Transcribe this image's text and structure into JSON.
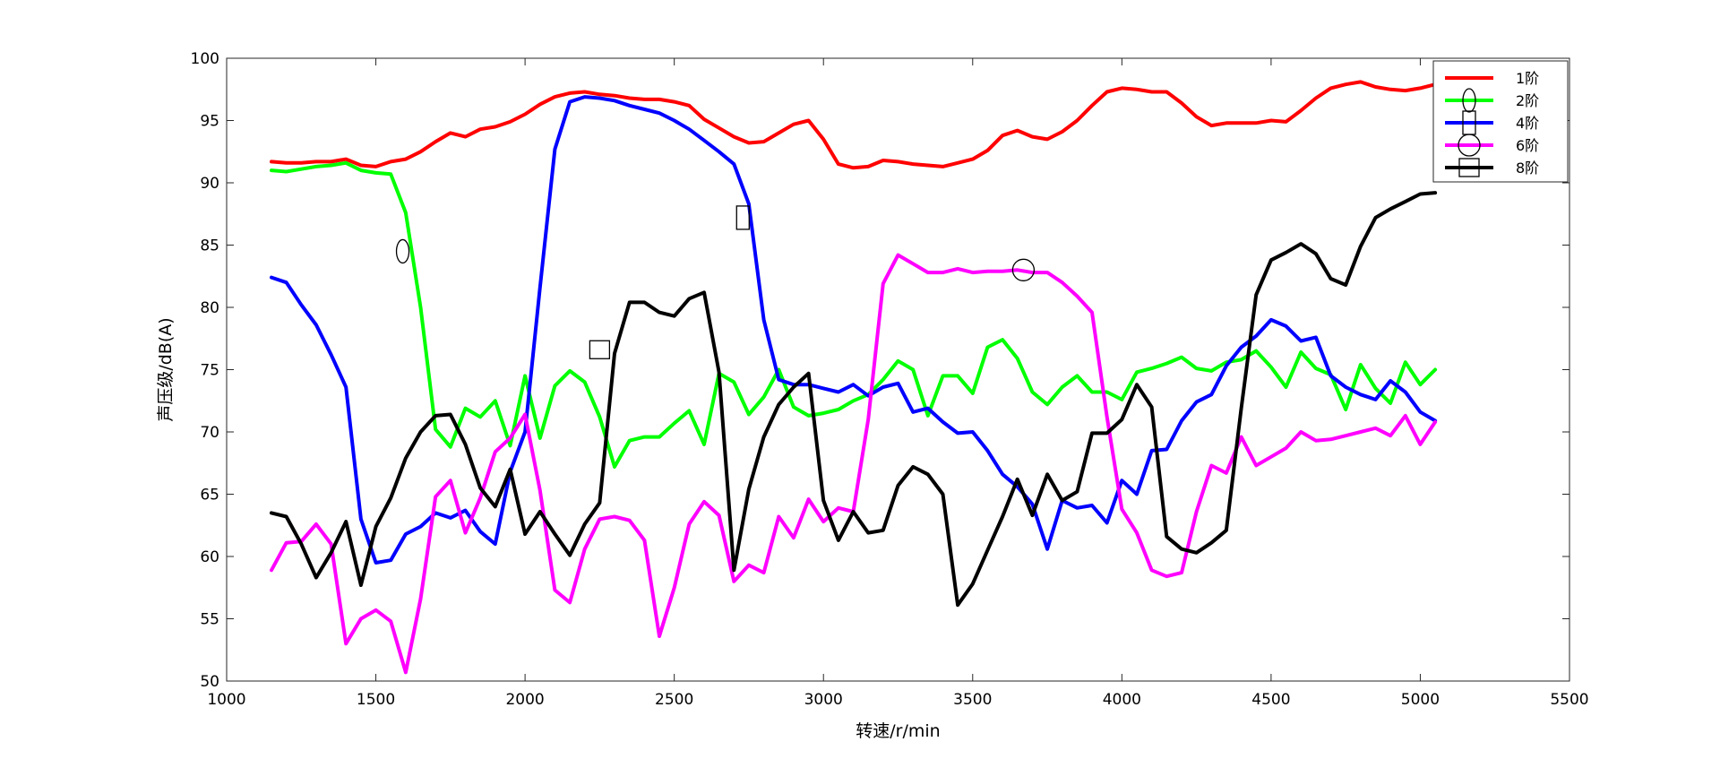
{
  "chart_data": {
    "type": "line",
    "title": "",
    "xlabel": "转速/r/min",
    "ylabel": "声压级/dB(A)",
    "xlim": [
      1000,
      5500
    ],
    "ylim": [
      50,
      100
    ],
    "xticks": [
      1000,
      1500,
      2000,
      2500,
      3000,
      3500,
      4000,
      4500,
      5000,
      5500
    ],
    "yticks": [
      50,
      55,
      60,
      65,
      70,
      75,
      80,
      85,
      90,
      95,
      100
    ],
    "grid": false,
    "legend_position": "top-right",
    "x": [
      1150,
      1200,
      1250,
      1300,
      1350,
      1400,
      1450,
      1500,
      1550,
      1600,
      1650,
      1700,
      1750,
      1800,
      1850,
      1900,
      1950,
      2000,
      2050,
      2100,
      2150,
      2200,
      2250,
      2300,
      2350,
      2400,
      2450,
      2500,
      2550,
      2600,
      2650,
      2700,
      2750,
      2800,
      2850,
      2900,
      2950,
      3000,
      3050,
      3100,
      3150,
      3200,
      3250,
      3300,
      3350,
      3400,
      3450,
      3500,
      3550,
      3600,
      3650,
      3700,
      3750,
      3800,
      3850,
      3900,
      3950,
      4000,
      4050,
      4100,
      4150,
      4200,
      4250,
      4300,
      4350,
      4400,
      4450,
      4500,
      4550,
      4600,
      4650,
      4700,
      4750,
      4800,
      4850,
      4900,
      4950,
      5000,
      5050
    ],
    "series": [
      {
        "name": "1阶",
        "color": "#ff0000",
        "marker": "none",
        "marker_label": "",
        "values": [
          91.7,
          91.6,
          91.6,
          91.7,
          91.7,
          91.9,
          91.4,
          91.3,
          91.7,
          91.9,
          92.5,
          93.3,
          94.0,
          93.7,
          94.3,
          94.5,
          94.9,
          95.5,
          96.3,
          96.9,
          97.2,
          97.3,
          97.1,
          97.0,
          96.8,
          96.7,
          96.7,
          96.5,
          96.2,
          95.1,
          94.4,
          93.7,
          93.2,
          93.3,
          94.0,
          94.7,
          95.0,
          93.5,
          91.5,
          91.2,
          91.3,
          91.8,
          91.7,
          91.5,
          91.4,
          91.3,
          91.6,
          91.9,
          92.6,
          93.8,
          94.2,
          93.7,
          93.5,
          94.1,
          95.0,
          96.2,
          97.3,
          97.6,
          97.5,
          97.3,
          97.3,
          96.4,
          95.3,
          94.6,
          94.8,
          94.8,
          94.8,
          95.0,
          94.9,
          95.8,
          96.8,
          97.6,
          97.9,
          98.1,
          97.7,
          97.5,
          97.4,
          97.6,
          97.9
        ]
      },
      {
        "name": "2阶",
        "color": "#00ff00",
        "marker": "ellipse",
        "marker_label": "",
        "values": [
          91.0,
          90.9,
          91.1,
          91.3,
          91.4,
          91.6,
          91.0,
          90.8,
          90.7,
          87.6,
          80.0,
          70.2,
          68.8,
          71.9,
          71.2,
          72.5,
          68.9,
          74.5,
          69.5,
          73.7,
          74.9,
          74.0,
          71.2,
          67.2,
          69.3,
          69.6,
          69.6,
          70.7,
          71.7,
          69.0,
          74.7,
          74.0,
          71.4,
          72.8,
          75.0,
          72.0,
          71.3,
          71.5,
          71.8,
          72.5,
          73.0,
          74.2,
          75.7,
          75.0,
          71.3,
          74.5,
          74.5,
          73.1,
          76.8,
          77.4,
          75.9,
          73.2,
          72.2,
          73.6,
          74.5,
          73.2,
          73.2,
          72.6,
          74.8,
          75.1,
          75.5,
          76.0,
          75.1,
          74.9,
          75.6,
          75.8,
          76.5,
          75.2,
          73.6,
          76.4,
          75.1,
          74.6,
          71.8,
          75.4,
          73.5,
          72.3,
          75.6,
          73.8,
          75.0
        ]
      },
      {
        "name": "4阶",
        "color": "#0000ff",
        "marker": "rectangle",
        "marker_label": "",
        "values": [
          82.4,
          82.0,
          80.2,
          78.6,
          76.2,
          73.6,
          63.0,
          59.5,
          59.7,
          61.8,
          62.4,
          63.5,
          63.1,
          63.7,
          62.0,
          61.0,
          66.8,
          70.0,
          81.6,
          92.7,
          96.5,
          96.9,
          96.8,
          96.6,
          96.2,
          95.9,
          95.6,
          95.0,
          94.3,
          93.4,
          92.5,
          91.5,
          88.3,
          79.0,
          74.2,
          73.8,
          73.8,
          73.5,
          73.2,
          73.8,
          72.9,
          73.6,
          73.9,
          71.6,
          71.9,
          70.8,
          69.9,
          70.0,
          68.5,
          66.6,
          65.6,
          64.2,
          60.6,
          64.5,
          63.9,
          64.1,
          62.7,
          66.1,
          65.0,
          68.5,
          68.6,
          70.9,
          72.4,
          73.0,
          75.3,
          76.8,
          77.7,
          79.0,
          78.5,
          77.3,
          77.6,
          74.5,
          73.6,
          73.0,
          72.6,
          74.1,
          73.2,
          71.6,
          70.9
        ]
      },
      {
        "name": "6阶",
        "color": "#ff00ff",
        "marker": "circle",
        "marker_label": "",
        "values": [
          58.9,
          61.1,
          61.2,
          62.6,
          61.0,
          53.0,
          55.0,
          55.7,
          54.8,
          50.7,
          56.6,
          64.8,
          66.1,
          61.9,
          64.7,
          68.4,
          69.5,
          71.4,
          65.3,
          57.3,
          56.3,
          60.6,
          63.0,
          63.2,
          62.9,
          61.3,
          53.6,
          57.5,
          62.6,
          64.4,
          63.3,
          58.0,
          59.3,
          58.7,
          63.2,
          61.5,
          64.6,
          62.8,
          63.9,
          63.6,
          71.0,
          81.9,
          84.2,
          83.5,
          82.8,
          82.8,
          83.1,
          82.8,
          82.9,
          82.9,
          83.0,
          82.8,
          82.8,
          82.0,
          80.9,
          79.6,
          71.2,
          63.8,
          61.9,
          58.9,
          58.4,
          58.7,
          63.6,
          67.3,
          66.7,
          69.6,
          67.3,
          68.0,
          68.7,
          70.0,
          69.3,
          69.4,
          69.7,
          70.0,
          70.3,
          69.7,
          71.3,
          69.0,
          70.8
        ]
      },
      {
        "name": "8阶",
        "color": "#000000",
        "marker": "square",
        "marker_label": "",
        "values": [
          63.5,
          63.2,
          61.0,
          58.3,
          60.3,
          62.8,
          57.7,
          62.4,
          64.7,
          67.9,
          70.0,
          71.3,
          71.4,
          69.0,
          65.5,
          64.0,
          67.0,
          61.8,
          63.6,
          61.8,
          60.1,
          62.6,
          64.3,
          76.3,
          80.4,
          80.4,
          79.6,
          79.3,
          80.7,
          81.2,
          74.8,
          58.9,
          65.4,
          69.6,
          72.2,
          73.6,
          74.7,
          64.5,
          61.3,
          63.6,
          61.9,
          62.1,
          65.7,
          67.2,
          66.6,
          65.0,
          56.1,
          57.8,
          60.5,
          63.2,
          66.2,
          63.3,
          66.6,
          64.5,
          65.2,
          69.9,
          69.9,
          71.0,
          73.8,
          72.0,
          61.6,
          60.6,
          60.3,
          61.1,
          62.1,
          71.9,
          81.0,
          83.8,
          84.4,
          85.1,
          84.3,
          82.3,
          81.8,
          84.9,
          87.2,
          87.9,
          88.5,
          89.1,
          89.2
        ]
      }
    ],
    "markers": [
      {
        "series": "2阶",
        "x": 1590,
        "y": 84.5,
        "shape": "ellipse"
      },
      {
        "series": "4阶",
        "x": 2730,
        "y": 87.2,
        "shape": "rectangle"
      },
      {
        "series": "6阶",
        "x": 3670,
        "y": 83.0,
        "shape": "circle"
      },
      {
        "series": "8阶",
        "x": 2250,
        "y": 76.6,
        "shape": "square"
      }
    ]
  }
}
